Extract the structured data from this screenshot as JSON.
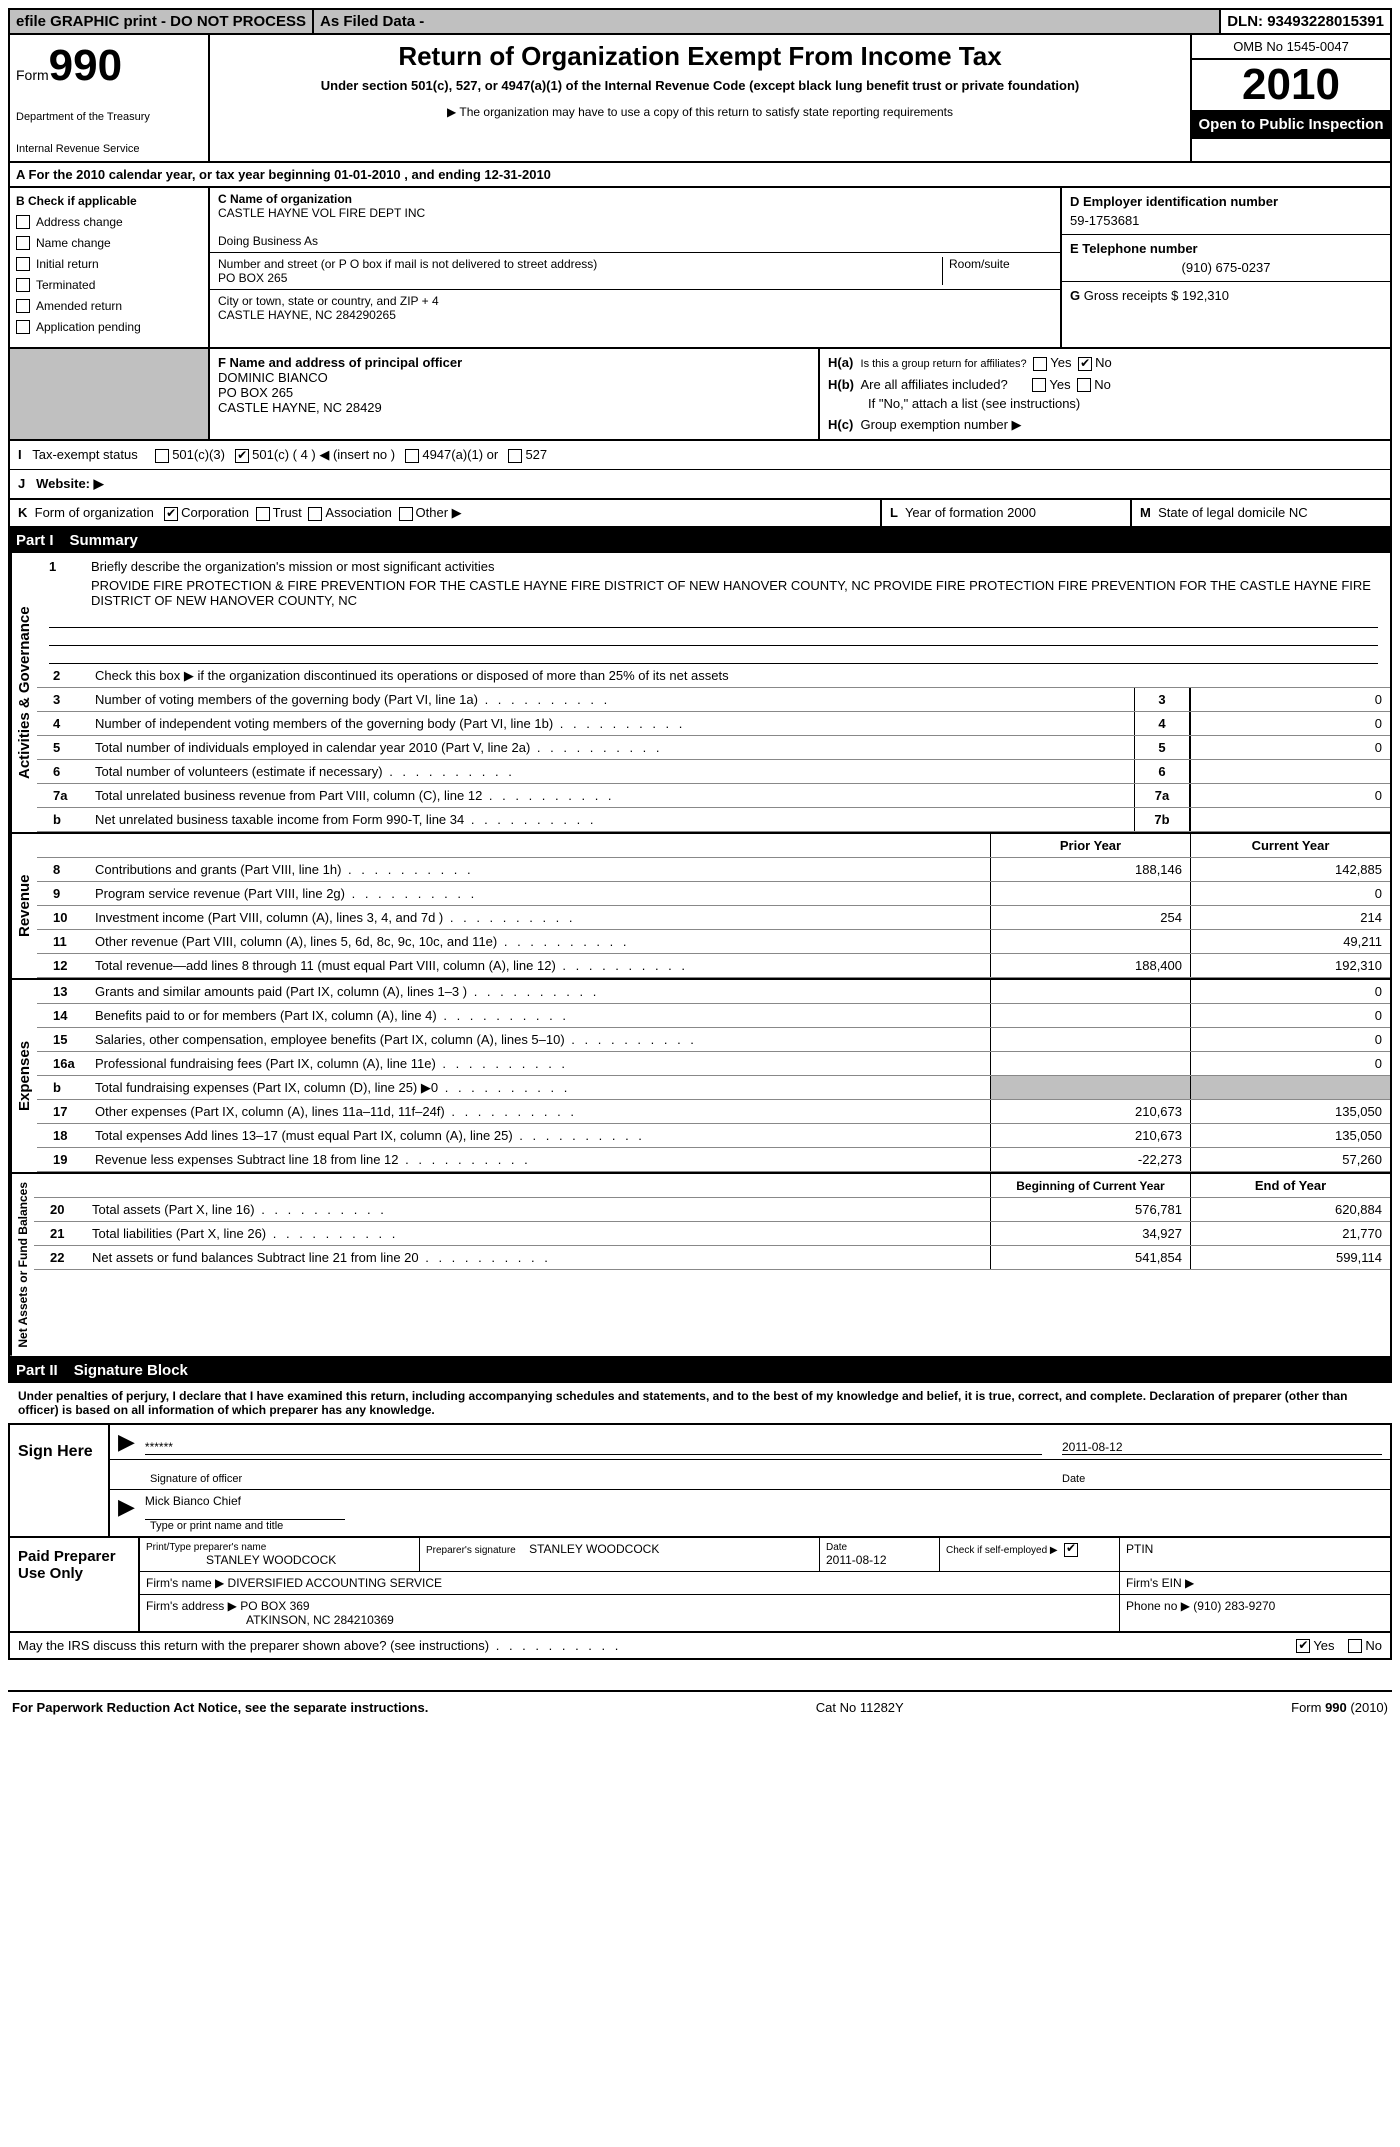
{
  "top": {
    "efile": "efile GRAPHIC print - DO NOT PROCESS",
    "asfiled": "As Filed Data -",
    "dln_label": "DLN:",
    "dln": "93493228015391"
  },
  "header": {
    "form_word": "Form",
    "form_num": "990",
    "dept1": "Department of the Treasury",
    "dept2": "Internal Revenue Service",
    "title": "Return of Organization Exempt From Income Tax",
    "sub": "Under section 501(c), 527, or 4947(a)(1) of the Internal Revenue Code (except black lung benefit trust or private foundation)",
    "note": "▶ The organization may have to use a copy of this return to satisfy state reporting requirements",
    "omb": "OMB No 1545-0047",
    "year": "2010",
    "open": "Open to Public Inspection"
  },
  "row_a": "A For the 2010 calendar year, or tax year beginning 01-01-2010    , and ending 12-31-2010",
  "section_b": {
    "label_b": "B",
    "label_check": "Check if applicable",
    "items": [
      "Address change",
      "Name change",
      "Initial return",
      "Terminated",
      "Amended return",
      "Application pending"
    ]
  },
  "section_c": {
    "label": "C Name of organization",
    "name": "CASTLE HAYNE VOL FIRE DEPT INC",
    "dba_label": "Doing Business As",
    "street_label": "Number and street (or P O  box if mail is not delivered to street address)",
    "street": "PO BOX 265",
    "room_label": "Room/suite",
    "city_label": "City or town, state or country, and ZIP + 4",
    "city": "CASTLE HAYNE, NC  284290265"
  },
  "section_d": {
    "d_label": "D Employer identification number",
    "d_val": "59-1753681",
    "e_label": "E Telephone number",
    "e_val": "(910) 675-0237",
    "g_label": "G",
    "g_text": "Gross receipts $ 192,310"
  },
  "section_f": {
    "label": "F   Name and address of principal officer",
    "line1": "DOMINIC BIANCO",
    "line2": "PO BOX 265",
    "line3": "CASTLE HAYNE, NC  28429"
  },
  "section_h": {
    "ha": "H(a)",
    "ha_text": "Is this a group return for affiliates?",
    "hb": "H(b)",
    "hb_text": "Are all affiliates included?",
    "hb_note": "If \"No,\" attach a list  (see instructions)",
    "hc": "H(c)",
    "hc_text": "Group exemption number ▶",
    "yes": "Yes",
    "no": "No"
  },
  "row_i": {
    "label": "I",
    "text": "Tax-exempt status",
    "opts": [
      "501(c)(3)",
      "501(c) ( 4 ) ◀ (insert no )",
      "4947(a)(1) or",
      "527"
    ]
  },
  "row_j": {
    "label": "J",
    "text": "Website: ▶"
  },
  "row_k": {
    "label": "K",
    "text": "Form of organization",
    "opts": [
      "Corporation",
      "Trust",
      "Association",
      "Other ▶"
    ],
    "l_label": "L",
    "l_text": "Year of formation  2000",
    "m_label": "M",
    "m_text": "State of legal domicile  NC"
  },
  "part1": {
    "hdr_part": "Part I",
    "hdr_title": "Summary",
    "mission_label": "Briefly describe the organization's mission or most significant activities",
    "mission": "PROVIDE FIRE PROTECTION & FIRE PREVENTION FOR THE CASTLE HAYNE FIRE DISTRICT OF NEW HANOVER COUNTY, NC PROVIDE FIRE PROTECTION FIRE PREVENTION FOR THE CASTLE HAYNE FIRE DISTRICT OF NEW HANOVER COUNTY, NC",
    "line2": "Check this box ▶      if the organization discontinued its operations or disposed of more than 25% of its net assets",
    "sections": {
      "gov": "Activities & Governance",
      "rev": "Revenue",
      "exp": "Expenses",
      "net": "Net Assets or Fund Balances"
    },
    "col_prior": "Prior Year",
    "col_current": "Current Year",
    "col_begin": "Beginning of Current Year",
    "col_end": "End of Year",
    "lines_gov": [
      {
        "n": "3",
        "d": "Number of voting members of the governing body (Part VI, line 1a)",
        "box": "3",
        "v": "0"
      },
      {
        "n": "4",
        "d": "Number of independent voting members of the governing body (Part VI, line 1b)",
        "box": "4",
        "v": "0"
      },
      {
        "n": "5",
        "d": "Total number of individuals employed in calendar year 2010 (Part V, line 2a)",
        "box": "5",
        "v": "0"
      },
      {
        "n": "6",
        "d": "Total number of volunteers (estimate if necessary)",
        "box": "6",
        "v": ""
      },
      {
        "n": "7a",
        "d": "Total unrelated business revenue from Part VIII, column (C), line 12",
        "box": "7a",
        "v": "0"
      },
      {
        "n": "b",
        "d": "Net unrelated business taxable income from Form 990-T, line 34",
        "box": "7b",
        "v": ""
      }
    ],
    "lines_rev": [
      {
        "n": "8",
        "d": "Contributions and grants (Part VIII, line 1h)",
        "p": "188,146",
        "c": "142,885"
      },
      {
        "n": "9",
        "d": "Program service revenue (Part VIII, line 2g)",
        "p": "",
        "c": "0"
      },
      {
        "n": "10",
        "d": "Investment income (Part VIII, column (A), lines 3, 4, and 7d )",
        "p": "254",
        "c": "214"
      },
      {
        "n": "11",
        "d": "Other revenue (Part VIII, column (A), lines 5, 6d, 8c, 9c, 10c, and 11e)",
        "p": "",
        "c": "49,211"
      },
      {
        "n": "12",
        "d": "Total revenue—add lines 8 through 11 (must equal Part VIII, column (A), line 12)",
        "p": "188,400",
        "c": "192,310"
      }
    ],
    "lines_exp": [
      {
        "n": "13",
        "d": "Grants and similar amounts paid (Part IX, column (A), lines 1–3 )",
        "p": "",
        "c": "0"
      },
      {
        "n": "14",
        "d": "Benefits paid to or for members (Part IX, column (A), line 4)",
        "p": "",
        "c": "0"
      },
      {
        "n": "15",
        "d": "Salaries, other compensation, employee benefits (Part IX, column (A), lines 5–10)",
        "p": "",
        "c": "0"
      },
      {
        "n": "16a",
        "d": "Professional fundraising fees (Part IX, column (A), line 11e)",
        "p": "",
        "c": "0"
      },
      {
        "n": "b",
        "d": "Total fundraising expenses (Part IX, column (D), line 25) ▶0",
        "p": "gray",
        "c": "gray"
      },
      {
        "n": "17",
        "d": "Other expenses (Part IX, column (A), lines 11a–11d, 11f–24f)",
        "p": "210,673",
        "c": "135,050"
      },
      {
        "n": "18",
        "d": "Total expenses  Add lines 13–17 (must equal Part IX, column (A), line 25)",
        "p": "210,673",
        "c": "135,050"
      },
      {
        "n": "19",
        "d": "Revenue less expenses  Subtract line 18 from line 12",
        "p": "-22,273",
        "c": "57,260"
      }
    ],
    "lines_net": [
      {
        "n": "20",
        "d": "Total assets (Part X, line 16)",
        "p": "576,781",
        "c": "620,884"
      },
      {
        "n": "21",
        "d": "Total liabilities (Part X, line 26)",
        "p": "34,927",
        "c": "21,770"
      },
      {
        "n": "22",
        "d": "Net assets or fund balances  Subtract line 21 from line 20",
        "p": "541,854",
        "c": "599,114"
      }
    ]
  },
  "part2": {
    "hdr_part": "Part II",
    "hdr_title": "Signature Block",
    "perjury": "Under penalties of perjury, I declare that I have examined this return, including accompanying schedules and statements, and to the best of my knowledge and belief, it is true, correct, and complete. Declaration of preparer (other than officer) is based on all information of which preparer has any knowledge.",
    "sign_here": "Sign Here",
    "sig_stars": "******",
    "sig_officer": "Signature of officer",
    "sig_date": "2011-08-12",
    "date_label": "Date",
    "name_title": "Mick Bianco Chief",
    "type_label": "Type or print name and title",
    "paid": "Paid Preparer Use Only",
    "prep_name_label": "Print/Type preparer's name",
    "prep_name": "STANLEY WOODCOCK",
    "prep_sig_label": "Preparer's signature",
    "prep_sig": "STANLEY WOODCOCK",
    "prep_date_label": "Date",
    "prep_date": "2011-08-12",
    "self_emp": "Check if self-employed ▶",
    "ptin": "PTIN",
    "firm_name_label": "Firm's name  ▶",
    "firm_name": "DIVERSIFIED ACCOUNTING SERVICE",
    "firm_ein": "Firm's EIN  ▶",
    "firm_addr_label": "Firm's address ▶",
    "firm_addr1": "PO BOX 369",
    "firm_addr2": "ATKINSON, NC  284210369",
    "phone_label": "Phone no  ▶",
    "phone": "(910) 283-9270",
    "may_irs": "May the IRS discuss this return with the preparer shown above? (see instructions)",
    "yes": "Yes",
    "no": "No"
  },
  "footer": {
    "left": "For Paperwork Reduction Act Notice, see the separate instructions.",
    "mid": "Cat No  11282Y",
    "right": "Form 990 (2010)"
  }
}
